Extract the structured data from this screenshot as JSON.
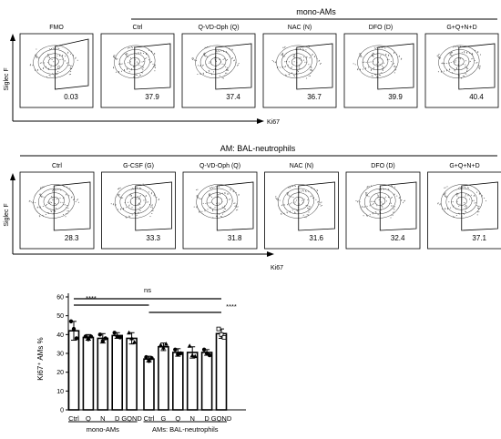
{
  "panel_a": {
    "header": "mono-AMs",
    "y_label": "Siglec F",
    "x_label": "Ki67",
    "plots": [
      {
        "title": "FMO",
        "value": "0.03"
      },
      {
        "title": "Ctrl",
        "value": "37.9"
      },
      {
        "title": "Q-VD-Oph (Q)",
        "value": "37.4"
      },
      {
        "title": "NAC (N)",
        "value": "36.7"
      },
      {
        "title": "DFO (D)",
        "value": "39.9"
      },
      {
        "title": "G+Q+N+D",
        "value": "40.4"
      }
    ]
  },
  "panel_b": {
    "header": "AM: BAL-neutrophils",
    "y_label": "Siglec F",
    "x_label": "Ki67",
    "plots": [
      {
        "title": "Ctrl",
        "value": "28.3"
      },
      {
        "title": "G-CSF (G)",
        "value": "33.3"
      },
      {
        "title": "Q-VD-Oph (Q)",
        "value": "31.8"
      },
      {
        "title": "NAC (N)",
        "value": "31.6"
      },
      {
        "title": "DFO (D)",
        "value": "32.4"
      },
      {
        "title": "G+Q+N+D",
        "value": "37.1"
      }
    ]
  },
  "chart_data": {
    "type": "bar",
    "ylabel": "Ki67⁺ AMs %",
    "ylim": [
      0,
      60
    ],
    "yticks": [
      0,
      10,
      20,
      30,
      40,
      50,
      60
    ],
    "categories": [
      "Ctrl",
      "Q",
      "N",
      "D",
      "GQND",
      "Ctrl",
      "G",
      "Q",
      "N",
      "D",
      "GQND"
    ],
    "values": [
      42,
      38.5,
      38,
      39.5,
      38,
      27,
      33.5,
      30.5,
      30.5,
      30.5,
      40.5
    ],
    "errors": [
      5,
      1.5,
      2.5,
      1.5,
      3,
      1.5,
      2,
      2,
      3,
      1.5,
      2.5
    ],
    "markers": [
      "circle",
      "circle",
      "circle",
      "circle",
      "triangle",
      "circle",
      "triangle",
      "circle",
      "triangle",
      "circle",
      "square"
    ],
    "points": [
      [
        47,
        43,
        38
      ],
      [
        39,
        37.5,
        39
      ],
      [
        40,
        36.5,
        38
      ],
      [
        41,
        39,
        38.5
      ],
      [
        41,
        38,
        36
      ],
      [
        28,
        26,
        27.5
      ],
      [
        34.5,
        33,
        35
      ],
      [
        32,
        29.5,
        30
      ],
      [
        34,
        29,
        28.5
      ],
      [
        32,
        30,
        29
      ],
      [
        43,
        40,
        38.5
      ]
    ],
    "groups": [
      {
        "label": "mono-AMs",
        "from": 0,
        "to": 4
      },
      {
        "label": "AMs: BAL-neutrophils",
        "from": 5,
        "to": 10
      }
    ],
    "significance": [
      {
        "label": "ns",
        "from": 0,
        "to": 10
      },
      {
        "label": "****",
        "from": 0,
        "to": 5
      },
      {
        "label": "****",
        "from": 5,
        "to": 10
      }
    ],
    "legend": false,
    "grid": false
  }
}
